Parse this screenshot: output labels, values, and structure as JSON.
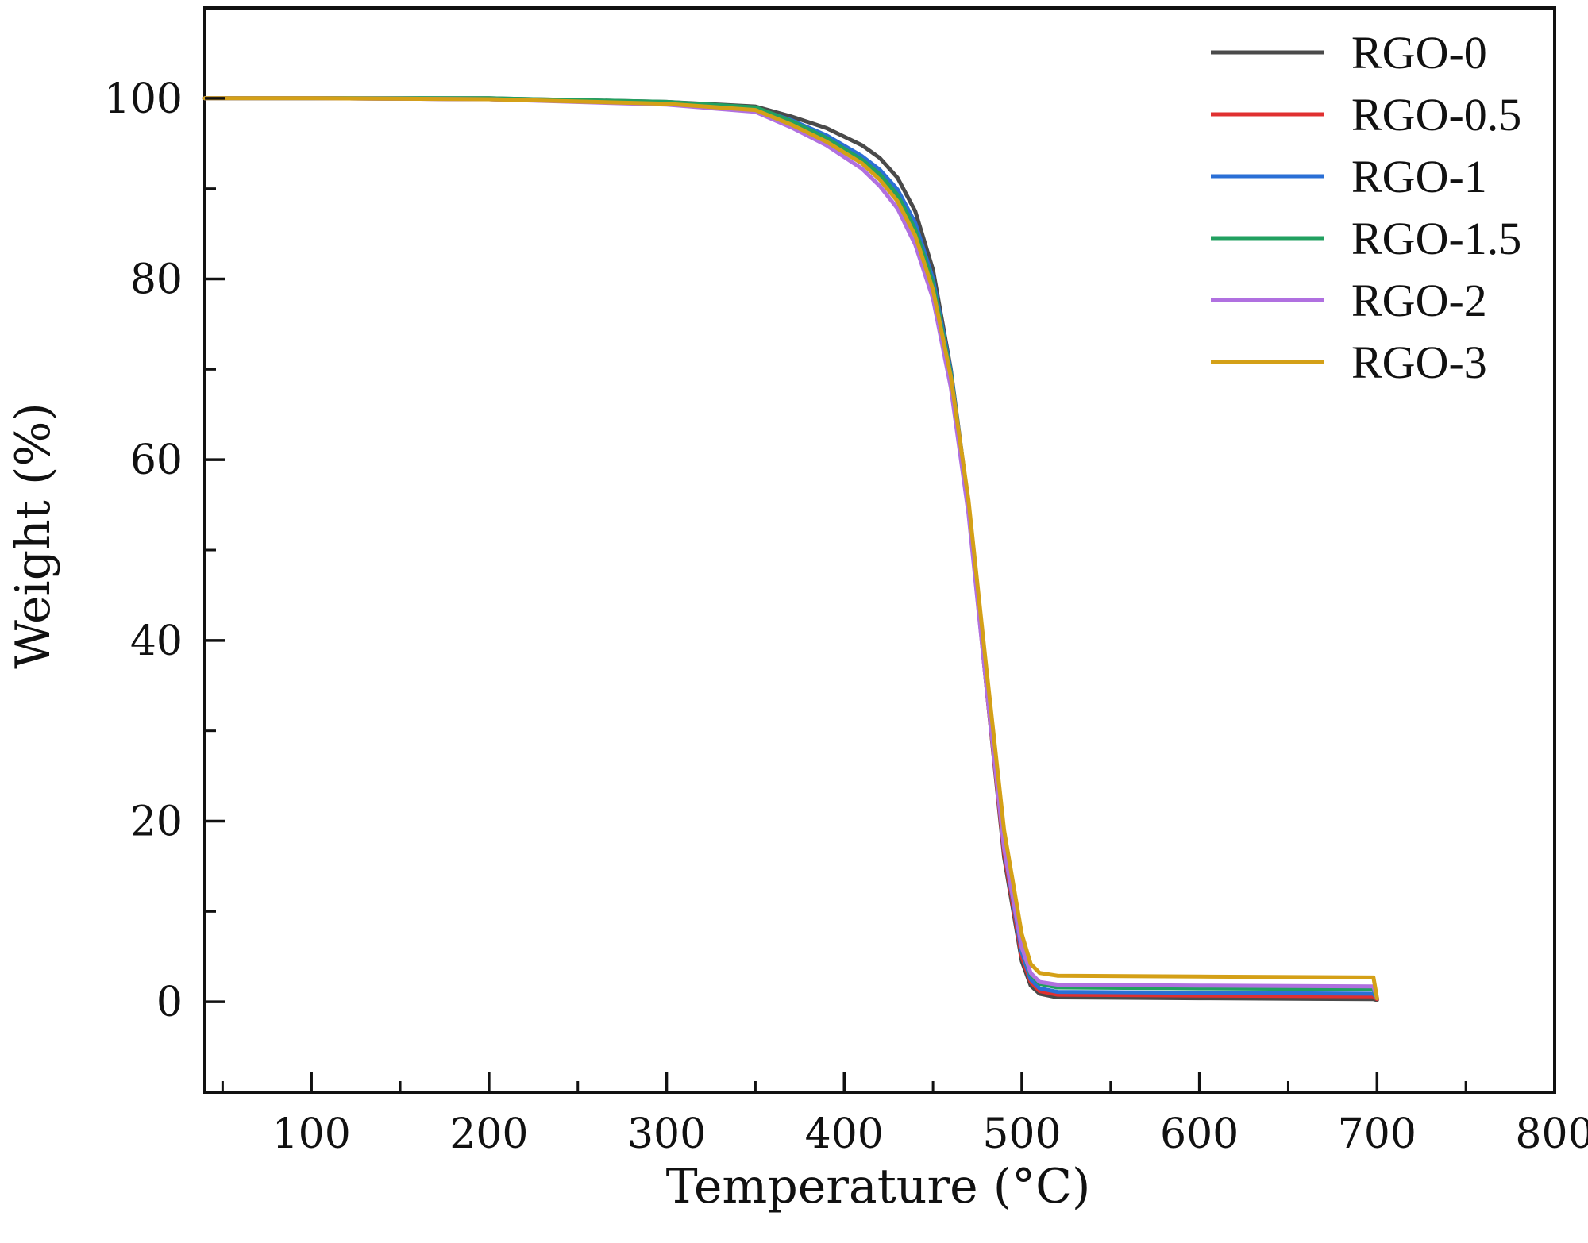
{
  "chart_data": {
    "type": "line",
    "title": "",
    "xlabel": "Temperature (°C)",
    "ylabel": "Weight (%)",
    "xlim": [
      40,
      800
    ],
    "ylim": [
      -10,
      110
    ],
    "xticks": [
      100,
      200,
      300,
      400,
      500,
      600,
      700,
      800
    ],
    "yticks": [
      0,
      20,
      40,
      60,
      80,
      100
    ],
    "grid": false,
    "legend_position": "top-right",
    "series": [
      {
        "name": "RGO-0",
        "color": "#4a4a4a",
        "points": [
          [
            40,
            100
          ],
          [
            100,
            100
          ],
          [
            200,
            100
          ],
          [
            300,
            99.6
          ],
          [
            350,
            99.1
          ],
          [
            370,
            98.0
          ],
          [
            390,
            96.7
          ],
          [
            410,
            94.8
          ],
          [
            420,
            93.4
          ],
          [
            430,
            91.2
          ],
          [
            440,
            87.5
          ],
          [
            450,
            81.0
          ],
          [
            460,
            70.0
          ],
          [
            470,
            55.0
          ],
          [
            480,
            35.0
          ],
          [
            490,
            16.0
          ],
          [
            500,
            4.5
          ],
          [
            505,
            1.8
          ],
          [
            510,
            0.9
          ],
          [
            520,
            0.5
          ],
          [
            600,
            0.4
          ],
          [
            698,
            0.3
          ],
          [
            700,
            0.2
          ]
        ]
      },
      {
        "name": "RGO-0.5",
        "color": "#e03030",
        "points": [
          [
            40,
            100
          ],
          [
            100,
            100
          ],
          [
            200,
            99.9
          ],
          [
            300,
            99.4
          ],
          [
            350,
            98.7
          ],
          [
            370,
            97.2
          ],
          [
            390,
            95.4
          ],
          [
            410,
            93.0
          ],
          [
            420,
            91.3
          ],
          [
            430,
            89.0
          ],
          [
            440,
            85.2
          ],
          [
            450,
            79.0
          ],
          [
            460,
            69.0
          ],
          [
            470,
            54.5
          ],
          [
            480,
            35.0
          ],
          [
            490,
            16.5
          ],
          [
            500,
            5.0
          ],
          [
            505,
            2.2
          ],
          [
            510,
            1.2
          ],
          [
            520,
            0.8
          ],
          [
            600,
            0.7
          ],
          [
            698,
            0.6
          ],
          [
            700,
            0.3
          ]
        ]
      },
      {
        "name": "RGO-1",
        "color": "#2a6fd6",
        "points": [
          [
            40,
            100
          ],
          [
            100,
            100
          ],
          [
            200,
            99.9
          ],
          [
            300,
            99.5
          ],
          [
            350,
            98.9
          ],
          [
            370,
            97.6
          ],
          [
            390,
            95.9
          ],
          [
            410,
            93.6
          ],
          [
            420,
            92.1
          ],
          [
            430,
            89.9
          ],
          [
            440,
            86.2
          ],
          [
            450,
            80.0
          ],
          [
            460,
            69.8
          ],
          [
            470,
            55.0
          ],
          [
            480,
            35.5
          ],
          [
            490,
            17.0
          ],
          [
            500,
            5.5
          ],
          [
            505,
            2.5
          ],
          [
            510,
            1.5
          ],
          [
            520,
            1.1
          ],
          [
            600,
            1.0
          ],
          [
            698,
            0.9
          ],
          [
            700,
            0.4
          ]
        ]
      },
      {
        "name": "RGO-1.5",
        "color": "#22a060",
        "points": [
          [
            40,
            100
          ],
          [
            100,
            100
          ],
          [
            200,
            100
          ],
          [
            300,
            99.6
          ],
          [
            350,
            99.0
          ],
          [
            370,
            97.5
          ],
          [
            390,
            95.6
          ],
          [
            410,
            93.2
          ],
          [
            420,
            91.6
          ],
          [
            430,
            89.3
          ],
          [
            440,
            85.5
          ],
          [
            450,
            79.5
          ],
          [
            460,
            69.5
          ],
          [
            470,
            55.0
          ],
          [
            480,
            35.8
          ],
          [
            490,
            17.5
          ],
          [
            500,
            6.0
          ],
          [
            505,
            3.0
          ],
          [
            510,
            2.0
          ],
          [
            520,
            1.6
          ],
          [
            600,
            1.5
          ],
          [
            698,
            1.4
          ],
          [
            700,
            0.4
          ]
        ]
      },
      {
        "name": "RGO-2",
        "color": "#b070e0",
        "points": [
          [
            40,
            100
          ],
          [
            100,
            100
          ],
          [
            200,
            99.9
          ],
          [
            300,
            99.3
          ],
          [
            350,
            98.5
          ],
          [
            370,
            96.8
          ],
          [
            390,
            94.8
          ],
          [
            410,
            92.2
          ],
          [
            420,
            90.3
          ],
          [
            430,
            87.8
          ],
          [
            440,
            83.8
          ],
          [
            450,
            77.8
          ],
          [
            460,
            68.0
          ],
          [
            470,
            54.0
          ],
          [
            480,
            35.0
          ],
          [
            490,
            17.0
          ],
          [
            500,
            6.0
          ],
          [
            505,
            3.2
          ],
          [
            510,
            2.2
          ],
          [
            520,
            1.9
          ],
          [
            600,
            1.8
          ],
          [
            698,
            1.7
          ],
          [
            700,
            0.4
          ]
        ]
      },
      {
        "name": "RGO-3",
        "color": "#d4a017",
        "points": [
          [
            40,
            100
          ],
          [
            100,
            100
          ],
          [
            200,
            99.9
          ],
          [
            300,
            99.4
          ],
          [
            350,
            98.7
          ],
          [
            370,
            97.1
          ],
          [
            390,
            95.2
          ],
          [
            410,
            92.8
          ],
          [
            420,
            91.0
          ],
          [
            430,
            88.6
          ],
          [
            440,
            84.8
          ],
          [
            450,
            78.8
          ],
          [
            460,
            69.2
          ],
          [
            470,
            55.5
          ],
          [
            480,
            37.0
          ],
          [
            490,
            19.0
          ],
          [
            500,
            7.5
          ],
          [
            505,
            4.2
          ],
          [
            510,
            3.2
          ],
          [
            520,
            2.9
          ],
          [
            600,
            2.8
          ],
          [
            698,
            2.7
          ],
          [
            700,
            0.4
          ]
        ]
      }
    ]
  }
}
